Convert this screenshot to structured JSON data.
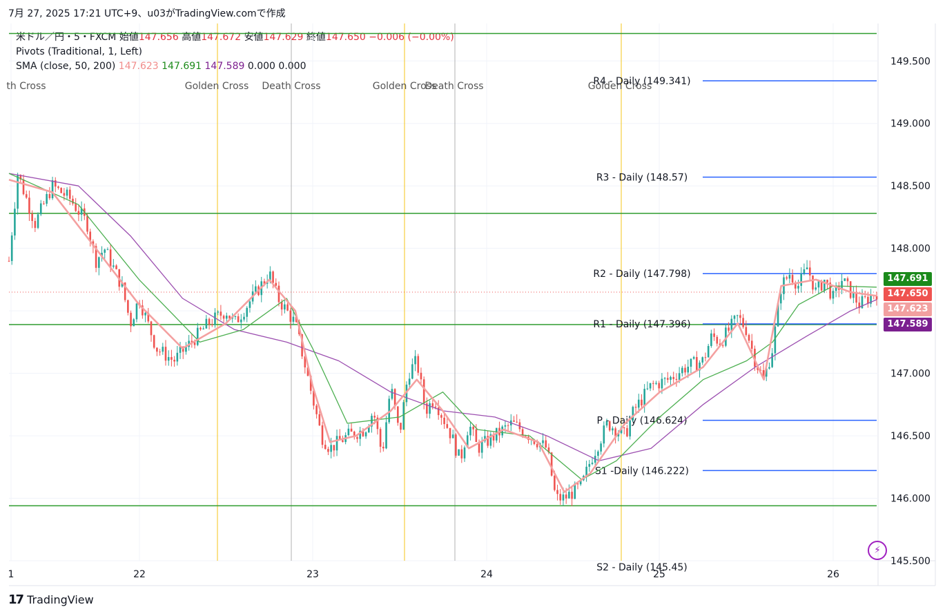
{
  "header": {
    "timestamp": "7月 27, 2025 17:21 UTC+9、u03がTradingView.comで作成"
  },
  "legend": {
    "symbol": "米ドル／円・5・FXCM",
    "open_label": "始値",
    "open": "147.656",
    "high_label": "高値",
    "high": "147.672",
    "low_label": "安値",
    "low": "147.629",
    "close_label": "終値",
    "close": "147.650",
    "change": "−0.006 (−0.00%)",
    "pivots": "Pivots (Traditional, 1, Left)",
    "sma_label": "SMA (close, 50, 200)",
    "sma_a": "147.623",
    "sma_b": "147.691",
    "sma_c": "147.589",
    "sma_d": "0.000",
    "sma_e": "0.000"
  },
  "colors": {
    "up": "#26a69a",
    "down": "#ef5350",
    "sma_fast": "#f4a0a0",
    "sma_mid": "#4caf50",
    "sma_slow": "#9c4fb0",
    "pivot": "#2962ff",
    "hline": "#2e9c2e",
    "golden": "#f5c518",
    "death": "#b0b0b0"
  },
  "axis_tags": [
    {
      "value": "147.691",
      "color": "#1b8a1b"
    },
    {
      "value": "147.650",
      "color": "#ef5350"
    },
    {
      "value": "147.623",
      "color": "#f2a0a0"
    },
    {
      "value": "147.589",
      "color": "#7b1f8f"
    }
  ],
  "footer": {
    "brand": "TradingView",
    "logo": "17"
  },
  "chart_data": {
    "type": "candlestick",
    "x_ticks": [
      "1",
      "22",
      "23",
      "24",
      "25",
      "26"
    ],
    "ylim": [
      145.5,
      149.8
    ],
    "y_ticks": [
      "145.500",
      "146.000",
      "146.500",
      "147.000",
      "147.500",
      "148.000",
      "148.500",
      "149.000",
      "149.500"
    ],
    "horizontal_lines": [
      149.72,
      148.28,
      147.39,
      145.94
    ],
    "pivots": [
      {
        "label": "R4 - Daily (149.341)",
        "value": 149.341
      },
      {
        "label": "R3 - Daily (148.57)",
        "value": 148.57
      },
      {
        "label": "R2 - Daily (147.798)",
        "value": 147.798
      },
      {
        "label": "R1 - Daily (147.396)",
        "value": 147.396
      },
      {
        "label": "P - Daily (146.624)",
        "value": 146.624
      },
      {
        "label": "S1 -Daily (146.222)",
        "value": 146.222
      },
      {
        "label": "S2 - Daily (145.45)",
        "value": 145.45
      }
    ],
    "cross_markers": [
      {
        "label": "th Cross",
        "kind": "death"
      },
      {
        "label": "Golden Cross",
        "kind": "golden"
      },
      {
        "label": "Death Cross",
        "kind": "death"
      },
      {
        "label": "Golden Cross",
        "kind": "golden"
      },
      {
        "label": "Death Cross",
        "kind": "death"
      },
      {
        "label": "Golden Cross",
        "kind": "golden"
      }
    ],
    "price_path": [
      [
        0,
        147.9
      ],
      [
        1,
        148.6
      ],
      [
        3,
        148.2
      ],
      [
        5,
        148.5
      ],
      [
        7,
        148.4
      ],
      [
        9,
        148.2
      ],
      [
        10,
        147.9
      ],
      [
        11,
        148.0
      ],
      [
        13,
        147.7
      ],
      [
        14,
        147.4
      ],
      [
        15,
        147.6
      ],
      [
        17,
        147.2
      ],
      [
        19,
        147.1
      ],
      [
        21,
        147.25
      ],
      [
        23,
        147.4
      ],
      [
        25,
        147.5
      ],
      [
        26,
        147.4
      ],
      [
        28,
        147.6
      ],
      [
        30,
        147.8
      ],
      [
        31,
        147.6
      ],
      [
        33,
        147.4
      ],
      [
        34,
        147.1
      ],
      [
        35,
        146.8
      ],
      [
        36,
        146.5
      ],
      [
        37,
        146.4
      ],
      [
        39,
        146.5
      ],
      [
        41,
        146.55
      ],
      [
        42,
        146.7
      ],
      [
        43,
        146.35
      ],
      [
        44,
        146.9
      ],
      [
        45,
        146.5
      ],
      [
        46,
        147.0
      ],
      [
        47,
        147.1
      ],
      [
        48,
        146.7
      ],
      [
        49,
        146.8
      ],
      [
        51,
        146.5
      ],
      [
        52,
        146.3
      ],
      [
        53,
        146.6
      ],
      [
        54,
        146.4
      ],
      [
        56,
        146.5
      ],
      [
        58,
        146.6
      ],
      [
        60,
        146.5
      ],
      [
        62,
        146.4
      ],
      [
        63,
        146.0
      ],
      [
        64,
        146.0
      ],
      [
        66,
        146.1
      ],
      [
        67,
        146.3
      ],
      [
        69,
        146.6
      ],
      [
        71,
        146.5
      ],
      [
        72,
        146.7
      ],
      [
        73,
        146.8
      ],
      [
        74,
        146.9
      ],
      [
        76,
        146.95
      ],
      [
        78,
        147.05
      ],
      [
        80,
        147.1
      ],
      [
        81,
        147.3
      ],
      [
        82,
        147.25
      ],
      [
        84,
        147.45
      ],
      [
        85,
        147.35
      ],
      [
        86,
        147.1
      ],
      [
        87,
        146.95
      ],
      [
        88,
        147.2
      ],
      [
        89,
        147.7
      ],
      [
        90,
        147.8
      ],
      [
        91,
        147.7
      ],
      [
        92,
        147.85
      ],
      [
        93,
        147.65
      ],
      [
        94,
        147.75
      ],
      [
        95,
        147.6
      ],
      [
        96,
        147.75
      ],
      [
        97,
        147.65
      ],
      [
        98,
        147.55
      ],
      [
        99,
        147.6
      ],
      [
        100,
        147.65
      ]
    ],
    "sma_fast": [
      [
        0,
        148.55
      ],
      [
        5,
        148.45
      ],
      [
        10,
        148.0
      ],
      [
        15,
        147.55
      ],
      [
        20,
        147.2
      ],
      [
        25,
        147.4
      ],
      [
        30,
        147.75
      ],
      [
        33,
        147.5
      ],
      [
        35,
        146.9
      ],
      [
        37,
        146.45
      ],
      [
        40,
        146.5
      ],
      [
        44,
        146.7
      ],
      [
        47,
        146.95
      ],
      [
        50,
        146.7
      ],
      [
        53,
        146.4
      ],
      [
        57,
        146.55
      ],
      [
        61,
        146.45
      ],
      [
        64,
        146.05
      ],
      [
        67,
        146.2
      ],
      [
        71,
        146.6
      ],
      [
        75,
        146.85
      ],
      [
        80,
        147.05
      ],
      [
        84,
        147.4
      ],
      [
        87,
        146.95
      ],
      [
        89,
        147.7
      ],
      [
        93,
        147.75
      ],
      [
        97,
        147.65
      ],
      [
        100,
        147.62
      ]
    ],
    "sma_mid": [
      [
        0,
        148.6
      ],
      [
        8,
        148.35
      ],
      [
        15,
        147.75
      ],
      [
        22,
        147.25
      ],
      [
        27,
        147.35
      ],
      [
        32,
        147.6
      ],
      [
        35,
        147.2
      ],
      [
        39,
        146.6
      ],
      [
        45,
        146.65
      ],
      [
        50,
        146.85
      ],
      [
        54,
        146.55
      ],
      [
        60,
        146.5
      ],
      [
        66,
        146.15
      ],
      [
        70,
        146.3
      ],
      [
        75,
        146.65
      ],
      [
        80,
        146.95
      ],
      [
        85,
        147.1
      ],
      [
        88,
        147.25
      ],
      [
        91,
        147.55
      ],
      [
        95,
        147.7
      ],
      [
        100,
        147.69
      ]
    ],
    "sma_slow": [
      [
        0,
        148.6
      ],
      [
        8,
        148.5
      ],
      [
        14,
        148.1
      ],
      [
        20,
        147.6
      ],
      [
        26,
        147.35
      ],
      [
        32,
        147.25
      ],
      [
        38,
        147.1
      ],
      [
        44,
        146.85
      ],
      [
        50,
        146.7
      ],
      [
        56,
        146.65
      ],
      [
        62,
        146.5
      ],
      [
        68,
        146.3
      ],
      [
        74,
        146.4
      ],
      [
        80,
        146.75
      ],
      [
        86,
        147.05
      ],
      [
        92,
        147.3
      ],
      [
        97,
        147.5
      ],
      [
        100,
        147.59
      ]
    ]
  }
}
